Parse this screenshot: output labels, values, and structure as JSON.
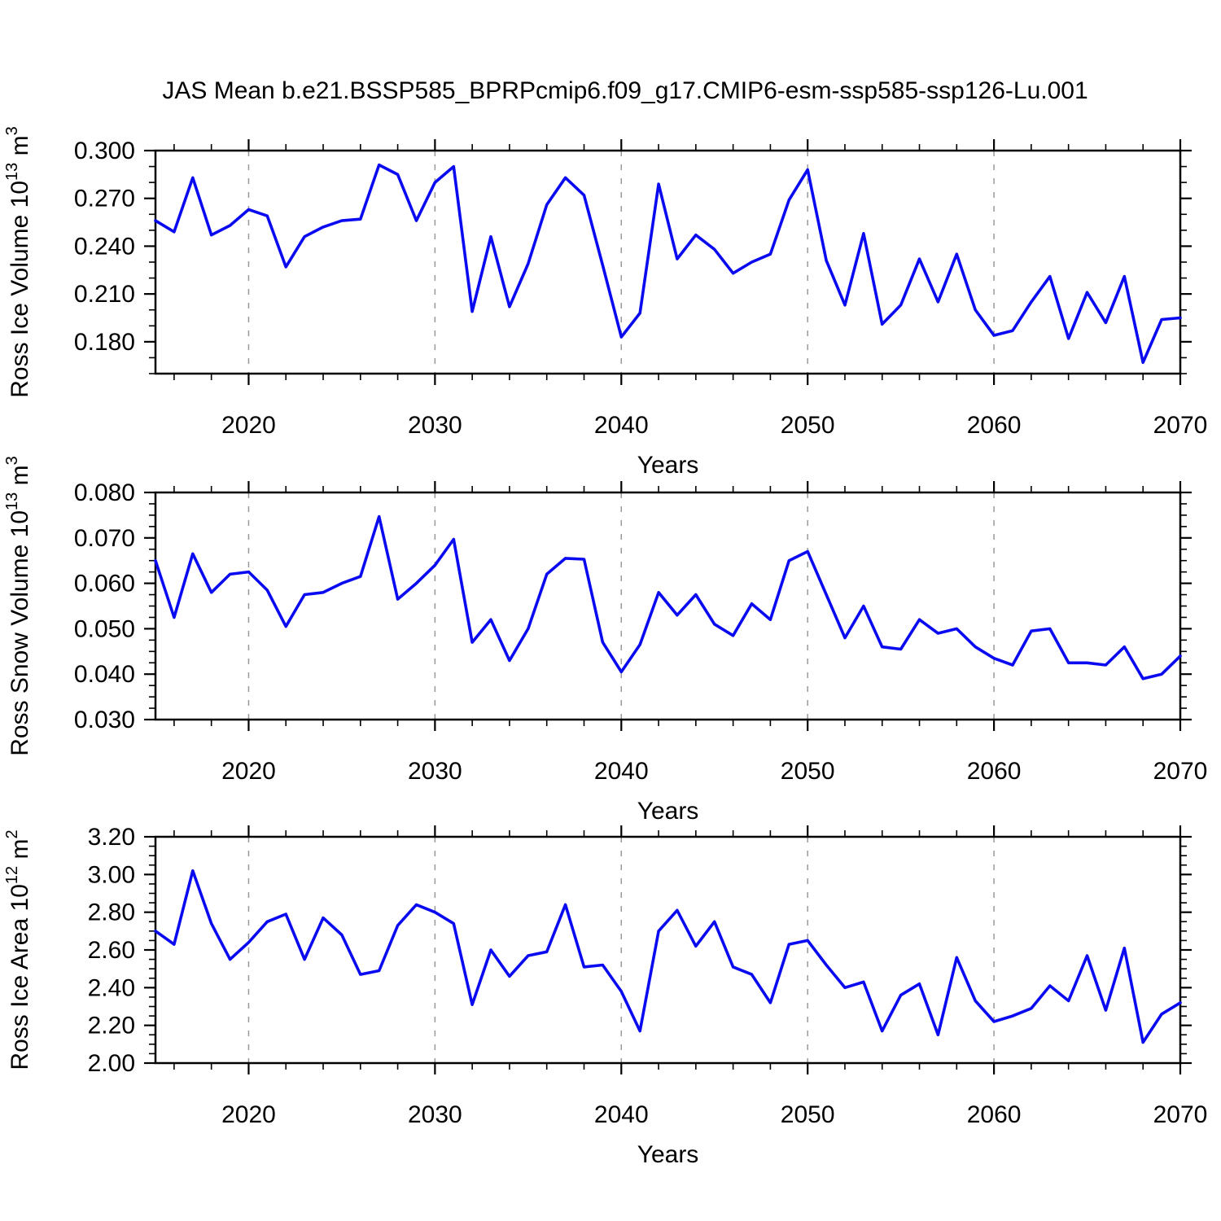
{
  "title": "JAS Mean b.e21.BSSP585_BPRPcmip6.f09_g17.CMIP6-esm-ssp585-ssp126-Lu.001",
  "colors": {
    "background": "#ffffff",
    "line": "#0a0af0",
    "grid": "#999999",
    "axis": "#000000"
  },
  "chart_data": [
    {
      "type": "line",
      "name": "ross-ice-volume",
      "xlabel": "Years",
      "ylabel": "Ross Ice Volume 10^13 m^3",
      "ylabel_segments": [
        {
          "text": "Ross Ice Volume 10"
        },
        {
          "text": "13",
          "super": true
        },
        {
          "text": " m"
        },
        {
          "text": "3",
          "super": true
        }
      ],
      "xlim": [
        2015,
        2070
      ],
      "ylim": [
        0.16,
        0.3
      ],
      "xticks_major": [
        2020,
        2030,
        2040,
        2050,
        2060,
        2070
      ],
      "xtick_labels": [
        "2020",
        "2030",
        "2040",
        "2050",
        "2060",
        "2070"
      ],
      "xminor_step": 2,
      "grid_x": [
        2020,
        2030,
        2040,
        2050,
        2060
      ],
      "yticks_major": [
        0.18,
        0.21,
        0.24,
        0.27,
        0.3
      ],
      "ytick_labels": [
        "0.180",
        "0.210",
        "0.240",
        "0.270",
        "0.300"
      ],
      "yminor_step": 0.01,
      "x": [
        2015,
        2016,
        2017,
        2018,
        2019,
        2020,
        2021,
        2022,
        2023,
        2024,
        2025,
        2026,
        2027,
        2028,
        2029,
        2030,
        2031,
        2032,
        2033,
        2034,
        2035,
        2036,
        2037,
        2038,
        2039,
        2040,
        2041,
        2042,
        2043,
        2044,
        2045,
        2046,
        2047,
        2048,
        2049,
        2050,
        2051,
        2052,
        2053,
        2054,
        2055,
        2056,
        2057,
        2058,
        2059,
        2060,
        2061,
        2062,
        2063,
        2064,
        2065,
        2066,
        2067,
        2068,
        2069,
        2070
      ],
      "values": [
        0.256,
        0.249,
        0.283,
        0.247,
        0.253,
        0.263,
        0.259,
        0.227,
        0.246,
        0.252,
        0.256,
        0.257,
        0.291,
        0.285,
        0.256,
        0.28,
        0.29,
        0.199,
        0.246,
        0.202,
        0.229,
        0.266,
        0.283,
        0.272,
        0.228,
        0.183,
        0.198,
        0.279,
        0.232,
        0.247,
        0.238,
        0.223,
        0.23,
        0.235,
        0.269,
        0.288,
        0.231,
        0.203,
        0.248,
        0.191,
        0.203,
        0.232,
        0.205,
        0.235,
        0.2,
        0.184,
        0.187,
        0.205,
        0.221,
        0.182,
        0.211,
        0.192,
        0.221,
        0.167,
        0.194,
        0.195
      ]
    },
    {
      "type": "line",
      "name": "ross-snow-volume",
      "xlabel": "Years",
      "ylabel": "Ross Snow Volume 10^13 m^3",
      "ylabel_segments": [
        {
          "text": "Ross Snow Volume 10"
        },
        {
          "text": "13",
          "super": true
        },
        {
          "text": " m"
        },
        {
          "text": "3",
          "super": true
        }
      ],
      "xlim": [
        2015,
        2070
      ],
      "ylim": [
        0.03,
        0.08
      ],
      "xticks_major": [
        2020,
        2030,
        2040,
        2050,
        2060,
        2070
      ],
      "xtick_labels": [
        "2020",
        "2030",
        "2040",
        "2050",
        "2060",
        "2070"
      ],
      "xminor_step": 2,
      "grid_x": [
        2020,
        2030,
        2040,
        2050,
        2060
      ],
      "yticks_major": [
        0.03,
        0.04,
        0.05,
        0.06,
        0.07,
        0.08
      ],
      "ytick_labels": [
        "0.030",
        "0.040",
        "0.050",
        "0.060",
        "0.070",
        "0.080"
      ],
      "yminor_step": 0.0025,
      "x": [
        2015,
        2016,
        2017,
        2018,
        2019,
        2020,
        2021,
        2022,
        2023,
        2024,
        2025,
        2026,
        2027,
        2028,
        2029,
        2030,
        2031,
        2032,
        2033,
        2034,
        2035,
        2036,
        2037,
        2038,
        2039,
        2040,
        2041,
        2042,
        2043,
        2044,
        2045,
        2046,
        2047,
        2048,
        2049,
        2050,
        2051,
        2052,
        2053,
        2054,
        2055,
        2056,
        2057,
        2058,
        2059,
        2060,
        2061,
        2062,
        2063,
        2064,
        2065,
        2066,
        2067,
        2068,
        2069,
        2070
      ],
      "values": [
        0.065,
        0.0525,
        0.0665,
        0.058,
        0.062,
        0.0625,
        0.0585,
        0.0505,
        0.0575,
        0.058,
        0.06,
        0.0615,
        0.0747,
        0.0565,
        0.06,
        0.064,
        0.0697,
        0.047,
        0.052,
        0.043,
        0.05,
        0.062,
        0.0655,
        0.0653,
        0.047,
        0.0405,
        0.0465,
        0.058,
        0.053,
        0.0575,
        0.051,
        0.0485,
        0.0555,
        0.052,
        0.065,
        0.067,
        0.0575,
        0.048,
        0.055,
        0.046,
        0.0455,
        0.052,
        0.049,
        0.05,
        0.046,
        0.0435,
        0.042,
        0.0495,
        0.05,
        0.0425,
        0.0425,
        0.042,
        0.046,
        0.039,
        0.04,
        0.044
      ]
    },
    {
      "type": "line",
      "name": "ross-ice-area",
      "xlabel": "Years",
      "ylabel": "Ross Ice Area 10^12 m^2",
      "ylabel_segments": [
        {
          "text": "Ross Ice Area 10"
        },
        {
          "text": "12",
          "super": true
        },
        {
          "text": " m"
        },
        {
          "text": "2",
          "super": true
        }
      ],
      "xlim": [
        2015,
        2070
      ],
      "ylim": [
        2.0,
        3.2
      ],
      "xticks_major": [
        2020,
        2030,
        2040,
        2050,
        2060,
        2070
      ],
      "xtick_labels": [
        "2020",
        "2030",
        "2040",
        "2050",
        "2060",
        "2070"
      ],
      "xminor_step": 2,
      "grid_x": [
        2020,
        2030,
        2040,
        2050,
        2060
      ],
      "yticks_major": [
        2.0,
        2.2,
        2.4,
        2.6,
        2.8,
        3.0,
        3.2
      ],
      "ytick_labels": [
        "2.00",
        "2.20",
        "2.40",
        "2.60",
        "2.80",
        "3.00",
        "3.20"
      ],
      "yminor_step": 0.05,
      "x": [
        2015,
        2016,
        2017,
        2018,
        2019,
        2020,
        2021,
        2022,
        2023,
        2024,
        2025,
        2026,
        2027,
        2028,
        2029,
        2030,
        2031,
        2032,
        2033,
        2034,
        2035,
        2036,
        2037,
        2038,
        2039,
        2040,
        2041,
        2042,
        2043,
        2044,
        2045,
        2046,
        2047,
        2048,
        2049,
        2050,
        2051,
        2052,
        2053,
        2054,
        2055,
        2056,
        2057,
        2058,
        2059,
        2060,
        2061,
        2062,
        2063,
        2064,
        2065,
        2066,
        2067,
        2068,
        2069,
        2070
      ],
      "values": [
        2.7,
        2.63,
        3.02,
        2.74,
        2.55,
        2.64,
        2.75,
        2.79,
        2.55,
        2.77,
        2.68,
        2.47,
        2.49,
        2.73,
        2.84,
        2.8,
        2.74,
        2.31,
        2.6,
        2.46,
        2.57,
        2.59,
        2.84,
        2.51,
        2.52,
        2.38,
        2.17,
        2.7,
        2.81,
        2.62,
        2.75,
        2.51,
        2.47,
        2.32,
        2.63,
        2.65,
        2.52,
        2.4,
        2.43,
        2.17,
        2.36,
        2.42,
        2.15,
        2.56,
        2.33,
        2.22,
        2.25,
        2.29,
        2.41,
        2.33,
        2.57,
        2.28,
        2.61,
        2.11,
        2.26,
        2.32
      ]
    }
  ]
}
